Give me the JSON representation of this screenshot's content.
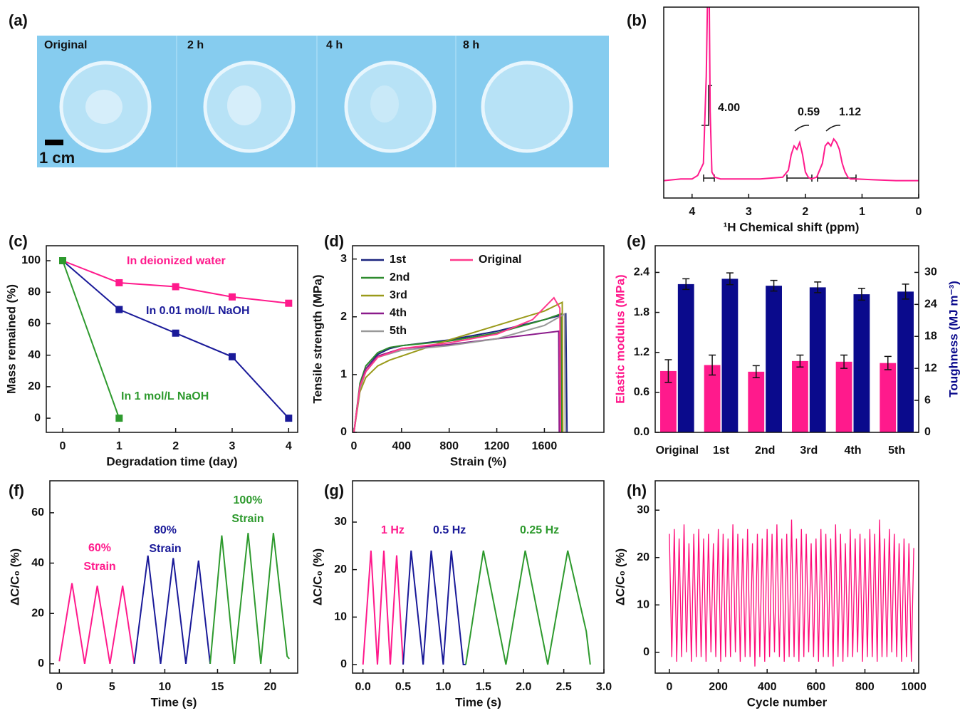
{
  "panel_a": {
    "panel_label": "(a)",
    "captions": [
      "Original",
      "2 h",
      "4 h",
      "8 h"
    ],
    "scale_bar": "1 cm"
  },
  "chart_data": [
    {
      "type": "line",
      "panel_label": "(b)",
      "xlabel": "¹H Chemical shift (ppm)",
      "xlim": [
        4.5,
        0
      ],
      "xticks": [
        4,
        3,
        2,
        1,
        0
      ],
      "ylim": [
        -0.1,
        1.0
      ],
      "annotations": [
        "4.00",
        "0.59",
        "1.12"
      ],
      "x": [
        4.5,
        4.2,
        4.0,
        3.9,
        3.8,
        3.75,
        3.72,
        3.7,
        3.68,
        3.65,
        3.6,
        3.5,
        3.2,
        2.8,
        2.4,
        2.3,
        2.25,
        2.2,
        2.15,
        2.1,
        2.05,
        2.0,
        1.95,
        1.9,
        1.8,
        1.7,
        1.65,
        1.6,
        1.55,
        1.5,
        1.45,
        1.4,
        1.35,
        1.3,
        1.25,
        1.2,
        1.1,
        0.8,
        0.4,
        0
      ],
      "series": [
        {
          "color": "#ff1a8c",
          "values": [
            0,
            0.01,
            0.01,
            0.03,
            0.1,
            0.6,
            1.2,
            1.2,
            0.4,
            0.05,
            0.02,
            0.01,
            0.01,
            0.01,
            0.02,
            0.06,
            0.15,
            0.2,
            0.18,
            0.22,
            0.15,
            0.05,
            0.02,
            0.01,
            0.02,
            0.1,
            0.2,
            0.22,
            0.2,
            0.24,
            0.22,
            0.18,
            0.1,
            0.05,
            0.02,
            0.01,
            0.01,
            0.005,
            0,
            0
          ]
        }
      ]
    },
    {
      "type": "line",
      "panel_label": "(c)",
      "xlabel": "Degradation time (day)",
      "ylabel": "Mass remained (%)",
      "xlim": [
        -0.29,
        4.16
      ],
      "xticks": [
        0,
        1,
        2,
        3,
        4
      ],
      "ylim": [
        -9,
        109.5
      ],
      "yticks": [
        0,
        20,
        40,
        60,
        80,
        100
      ],
      "marker": "square",
      "x": [
        0,
        1,
        2,
        3,
        4
      ],
      "series": [
        {
          "name": "In deionized water",
          "color": "#ff1a8c",
          "values": [
            100,
            86,
            83.5,
            77,
            73
          ]
        },
        {
          "name": "In 0.01 mol/L NaOH",
          "color": "#1a1a99",
          "values": [
            100,
            69,
            54,
            39,
            0
          ]
        },
        {
          "name": "In 1 mol/L NaOH",
          "color": "#2e9a2e",
          "values": [
            100,
            0,
            null,
            null,
            null
          ]
        }
      ]
    },
    {
      "type": "line",
      "panel_label": "(d)",
      "xlabel": "Strain (%)",
      "ylabel": "Tensile strength (MPa)",
      "xlim": [
        -12,
        2100
      ],
      "xticks": [
        0,
        400,
        800,
        1200,
        1600
      ],
      "ylim": [
        0,
        3.23
      ],
      "yticks": [
        0,
        1,
        2,
        3
      ],
      "legend": "top-left",
      "series": [
        {
          "name": "1st",
          "color": "#1a237e",
          "x": [
            0,
            50,
            100,
            200,
            300,
            400,
            800,
            1200,
            1600,
            1780,
            1790
          ],
          "values": [
            0,
            0.8,
            1.1,
            1.35,
            1.45,
            1.5,
            1.6,
            1.75,
            1.95,
            2.05,
            0
          ]
        },
        {
          "name": "2nd",
          "color": "#2e8b2e",
          "x": [
            0,
            50,
            100,
            200,
            300,
            400,
            800,
            1200,
            1600,
            1740,
            1745
          ],
          "values": [
            0,
            0.85,
            1.15,
            1.38,
            1.47,
            1.5,
            1.58,
            1.72,
            1.95,
            2.05,
            0
          ]
        },
        {
          "name": "3rd",
          "color": "#9a9a1a",
          "x": [
            0,
            50,
            100,
            200,
            300,
            400,
            800,
            1200,
            1600,
            1750,
            1755
          ],
          "values": [
            0,
            0.7,
            0.95,
            1.15,
            1.25,
            1.32,
            1.6,
            1.85,
            2.1,
            2.25,
            0
          ]
        },
        {
          "name": "4th",
          "color": "#8b1a8b",
          "x": [
            0,
            50,
            100,
            200,
            400,
            800,
            1200,
            1600,
            1720,
            1725
          ],
          "values": [
            0,
            0.8,
            1.1,
            1.32,
            1.45,
            1.52,
            1.62,
            1.72,
            1.75,
            0
          ]
        },
        {
          "name": "5th",
          "color": "#999999",
          "x": [
            0,
            50,
            100,
            200,
            400,
            800,
            1200,
            1600,
            1770,
            1775
          ],
          "values": [
            0,
            0.75,
            1.05,
            1.3,
            1.42,
            1.5,
            1.62,
            1.85,
            2.05,
            0
          ]
        },
        {
          "name": "Original",
          "color": "#ff3a8c",
          "x": [
            0,
            50,
            100,
            200,
            400,
            800,
            1200,
            1500,
            1680,
            1730,
            1735
          ],
          "values": [
            0,
            0.8,
            1.05,
            1.3,
            1.45,
            1.55,
            1.7,
            1.95,
            2.33,
            2.15,
            0
          ]
        }
      ]
    },
    {
      "type": "bar",
      "panel_label": "(e)",
      "ylabel": "Elastic modulus (MPa)",
      "y2label": "Toughness (MJ m⁻³)",
      "categories": [
        "Original",
        "1st",
        "2nd",
        "3rd",
        "4th",
        "5th"
      ],
      "ylim": [
        0,
        2.8
      ],
      "yticks": [
        {
          "value": 0,
          "label": "0.0"
        },
        0.6,
        1.2,
        1.8,
        2.4
      ],
      "y2lim": [
        0,
        35
      ],
      "y2ticks": [
        0,
        6,
        12,
        18,
        24,
        30
      ],
      "series": [
        {
          "color": "#ff1a8c",
          "values": [
            0.92,
            1.01,
            0.91,
            1.07,
            1.06,
            1.04
          ],
          "errors": [
            0.17,
            0.15,
            0.09,
            0.09,
            0.1,
            0.1
          ]
        },
        {
          "color": "#0a0a8c",
          "axis": "y2",
          "values": [
            27.8,
            28.8,
            27.5,
            27.2,
            25.9,
            26.4
          ],
          "errors": [
            1.0,
            1.1,
            1.0,
            1.0,
            1.1,
            1.4
          ]
        }
      ]
    },
    {
      "type": "line",
      "panel_label": "(f)",
      "xlabel": "Time (s)",
      "ylabel": "ΔC/C₀ (%)",
      "xlim": [
        -0.9,
        22.6
      ],
      "xticks": [
        0,
        5,
        10,
        15,
        20
      ],
      "ylim": [
        -3.7,
        72.7
      ],
      "yticks": [
        0,
        20,
        40,
        60
      ],
      "series": [
        {
          "label": [
            "60%",
            "Strain"
          ],
          "color": "#ff1a8c",
          "x": [
            0,
            1.2,
            2.4,
            3.6,
            4.8,
            6.0,
            7.1
          ],
          "values": [
            1,
            32,
            0,
            31,
            0,
            31,
            0
          ]
        },
        {
          "label": [
            "80%",
            "Strain"
          ],
          "color": "#1a1a99",
          "x": [
            7.1,
            8.4,
            9.6,
            10.8,
            12.0,
            13.2,
            14.3
          ],
          "values": [
            0,
            43,
            0,
            42,
            0,
            41,
            0
          ]
        },
        {
          "label": [
            "100%",
            "Strain"
          ],
          "color": "#2e9a2e",
          "x": [
            14.3,
            15.4,
            16.6,
            17.9,
            19.1,
            20.3,
            21.6,
            21.8
          ],
          "values": [
            0,
            51,
            0,
            52,
            0,
            52,
            3,
            2
          ]
        }
      ]
    },
    {
      "type": "line",
      "panel_label": "(g)",
      "xlabel": "Time (s)",
      "ylabel": "ΔC/C₀ (%)",
      "xlim": [
        -0.13,
        3.0
      ],
      "xticks": [
        {
          "value": 0,
          "label": "0.0"
        },
        0.5,
        {
          "value": 1,
          "label": "1.0"
        },
        1.5,
        {
          "value": 2,
          "label": "2.0"
        },
        2.5,
        {
          "value": 3,
          "label": "3.0"
        }
      ],
      "ylim": [
        -1.8,
        38.7
      ],
      "yticks": [
        0,
        10,
        20,
        30
      ],
      "series": [
        {
          "label": "1 Hz",
          "color": "#ff1a8c",
          "x": [
            0,
            0.1,
            0.18,
            0.26,
            0.34,
            0.42,
            0.5
          ],
          "values": [
            0,
            24,
            0,
            24,
            0,
            23,
            0
          ]
        },
        {
          "label": "0.5 Hz",
          "color": "#1a1a99",
          "x": [
            0.5,
            0.6,
            0.75,
            0.85,
            1.0,
            1.1,
            1.25,
            1.28
          ],
          "values": [
            0,
            24,
            0,
            24,
            0,
            24,
            0,
            0
          ]
        },
        {
          "label": "0.25 Hz",
          "color": "#2e9a2e",
          "x": [
            1.28,
            1.5,
            1.78,
            2.02,
            2.3,
            2.55,
            2.78,
            2.83
          ],
          "values": [
            0,
            24,
            0,
            24,
            0,
            24,
            7,
            0
          ]
        }
      ]
    },
    {
      "type": "line",
      "panel_label": "(h)",
      "xlabel": "Cycle number",
      "ylabel": "ΔC/C₀ (%)",
      "xlim": [
        -58,
        1020
      ],
      "xticks": [
        0,
        200,
        400,
        600,
        800,
        1000
      ],
      "ylim": [
        -4.4,
        36.2
      ],
      "yticks": [
        0,
        10,
        20,
        30
      ],
      "x": [
        0,
        10,
        20,
        30,
        40,
        50,
        60,
        70,
        80,
        90,
        100,
        110,
        120,
        130,
        140,
        150,
        160,
        170,
        180,
        190,
        200,
        210,
        220,
        230,
        240,
        250,
        260,
        270,
        280,
        290,
        300,
        310,
        320,
        330,
        340,
        350,
        360,
        370,
        380,
        390,
        400,
        410,
        420,
        430,
        440,
        450,
        460,
        470,
        480,
        490,
        500,
        510,
        520,
        530,
        540,
        550,
        560,
        570,
        580,
        590,
        600,
        610,
        620,
        630,
        640,
        650,
        660,
        670,
        680,
        690,
        700,
        710,
        720,
        730,
        740,
        750,
        760,
        770,
        780,
        790,
        800,
        810,
        820,
        830,
        840,
        850,
        860,
        870,
        880,
        890,
        900,
        910,
        920,
        930,
        940,
        950,
        960,
        970,
        980,
        990,
        1000
      ],
      "series": [
        {
          "color": "#ff0a78",
          "values": [
            25,
            -1,
            26,
            -2,
            24,
            -1,
            27,
            0,
            23,
            -2,
            25,
            -1,
            26,
            -1,
            24,
            -2,
            25,
            0,
            23,
            -1,
            26,
            -2,
            25,
            -1,
            24,
            -1,
            27,
            0,
            25,
            -2,
            24,
            -1,
            26,
            -1,
            23,
            -3,
            25,
            -1,
            24,
            -2,
            26,
            -1,
            25,
            0,
            27,
            -1,
            24,
            -2,
            25,
            -1,
            28,
            -1,
            24,
            -2,
            26,
            -1,
            25,
            0,
            23,
            -1,
            24,
            -2,
            26,
            -1,
            25,
            -1,
            24,
            -3,
            27,
            -1,
            25,
            -2,
            23,
            -1,
            26,
            -1,
            24,
            0,
            25,
            -2,
            24,
            -1,
            26,
            -1,
            25,
            -2,
            28,
            -1,
            24,
            -1,
            26,
            0,
            25,
            -1,
            23,
            -2,
            24,
            -1,
            23,
            -2,
            22
          ]
        }
      ]
    }
  ]
}
